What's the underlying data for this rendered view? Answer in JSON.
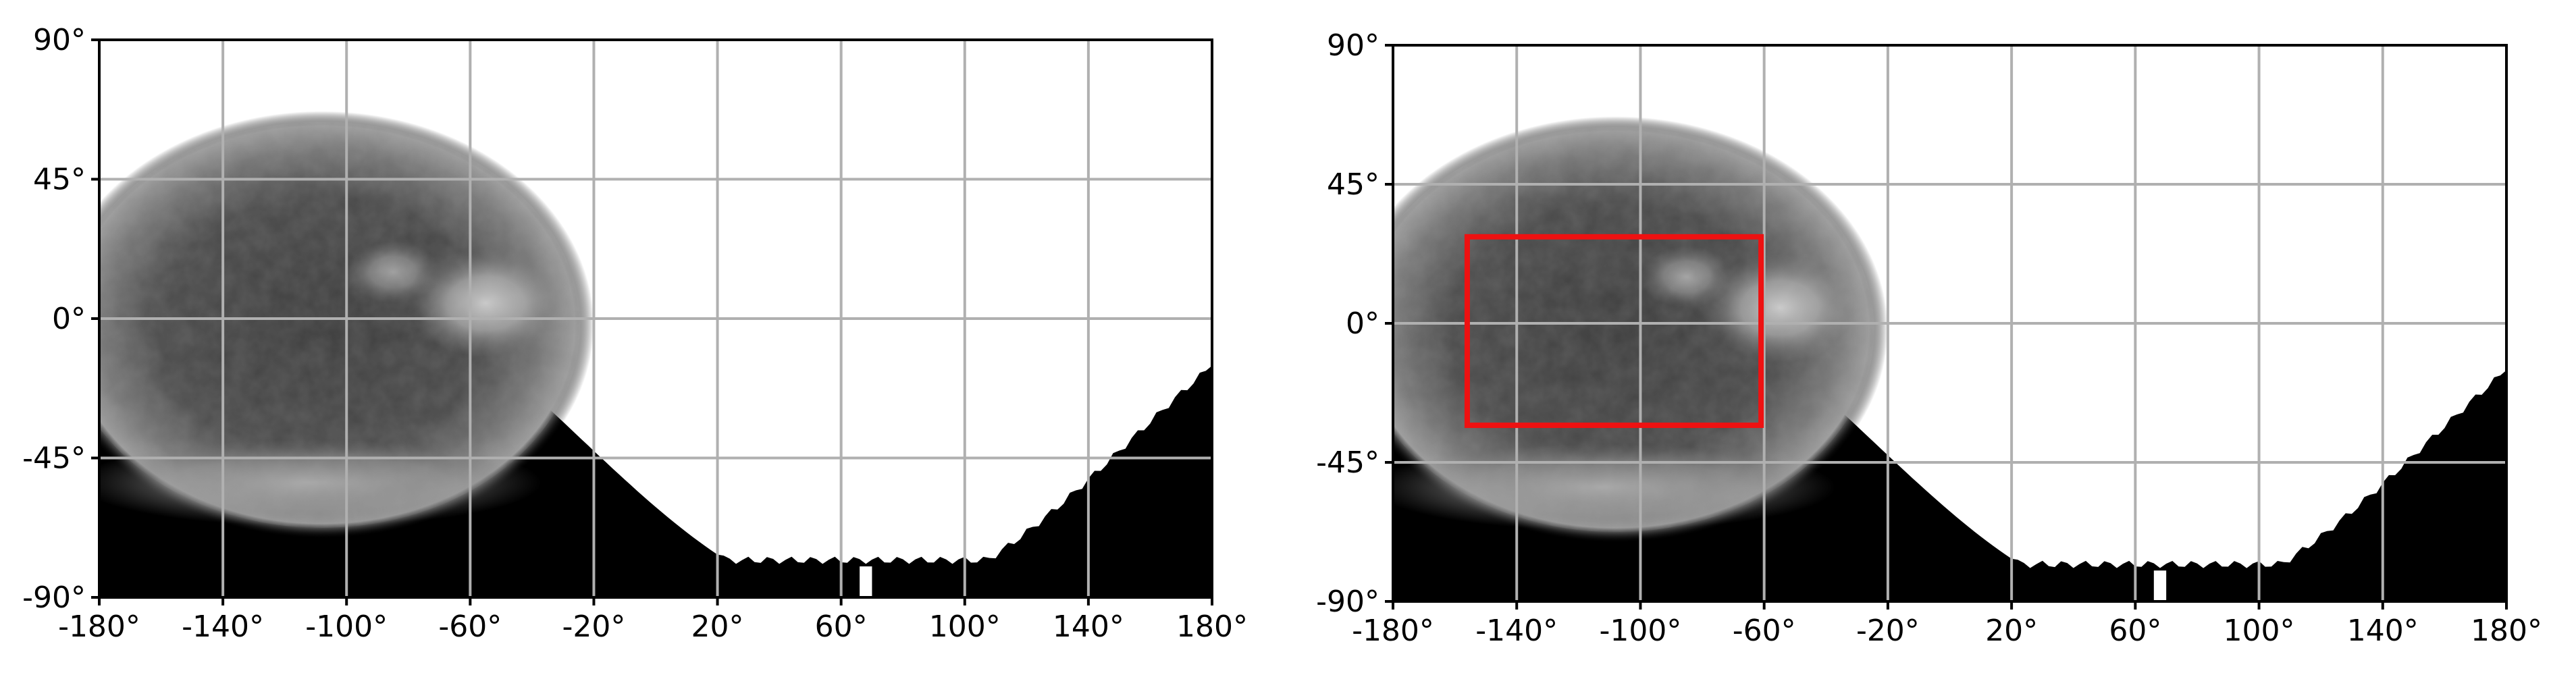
{
  "maps": [
    {
      "name": "map-left",
      "projection": "equirectangular",
      "lon_range": [
        -180,
        180
      ],
      "lat_range": [
        -90,
        90
      ],
      "x_ticks": [
        "-180°",
        "-140°",
        "-100°",
        "-60°",
        "-20°",
        "20°",
        "60°",
        "100°",
        "140°",
        "180°"
      ],
      "y_ticks": [
        "90°",
        "45°",
        "0°",
        "-45°",
        "-90°"
      ],
      "grid": true,
      "highlight_box": null
    },
    {
      "name": "map-right",
      "projection": "equirectangular",
      "lon_range": [
        -180,
        180
      ],
      "lat_range": [
        -90,
        90
      ],
      "x_ticks": [
        "-180°",
        "-140°",
        "-100°",
        "-60°",
        "-20°",
        "20°",
        "60°",
        "100°",
        "140°",
        "180°"
      ],
      "y_ticks": [
        "90°",
        "45°",
        "0°",
        "-45°",
        "-90°"
      ],
      "grid": true,
      "highlight_box": {
        "lon_min": -156,
        "lon_max": -61,
        "lat_min": -33,
        "lat_max": 28,
        "color": "#ee1111"
      }
    }
  ],
  "colors": {
    "grid": "#b0b0b0",
    "frame": "#000000",
    "highlight": "#ee1111",
    "night_side": "#000000",
    "day_side": "#ffffff"
  }
}
